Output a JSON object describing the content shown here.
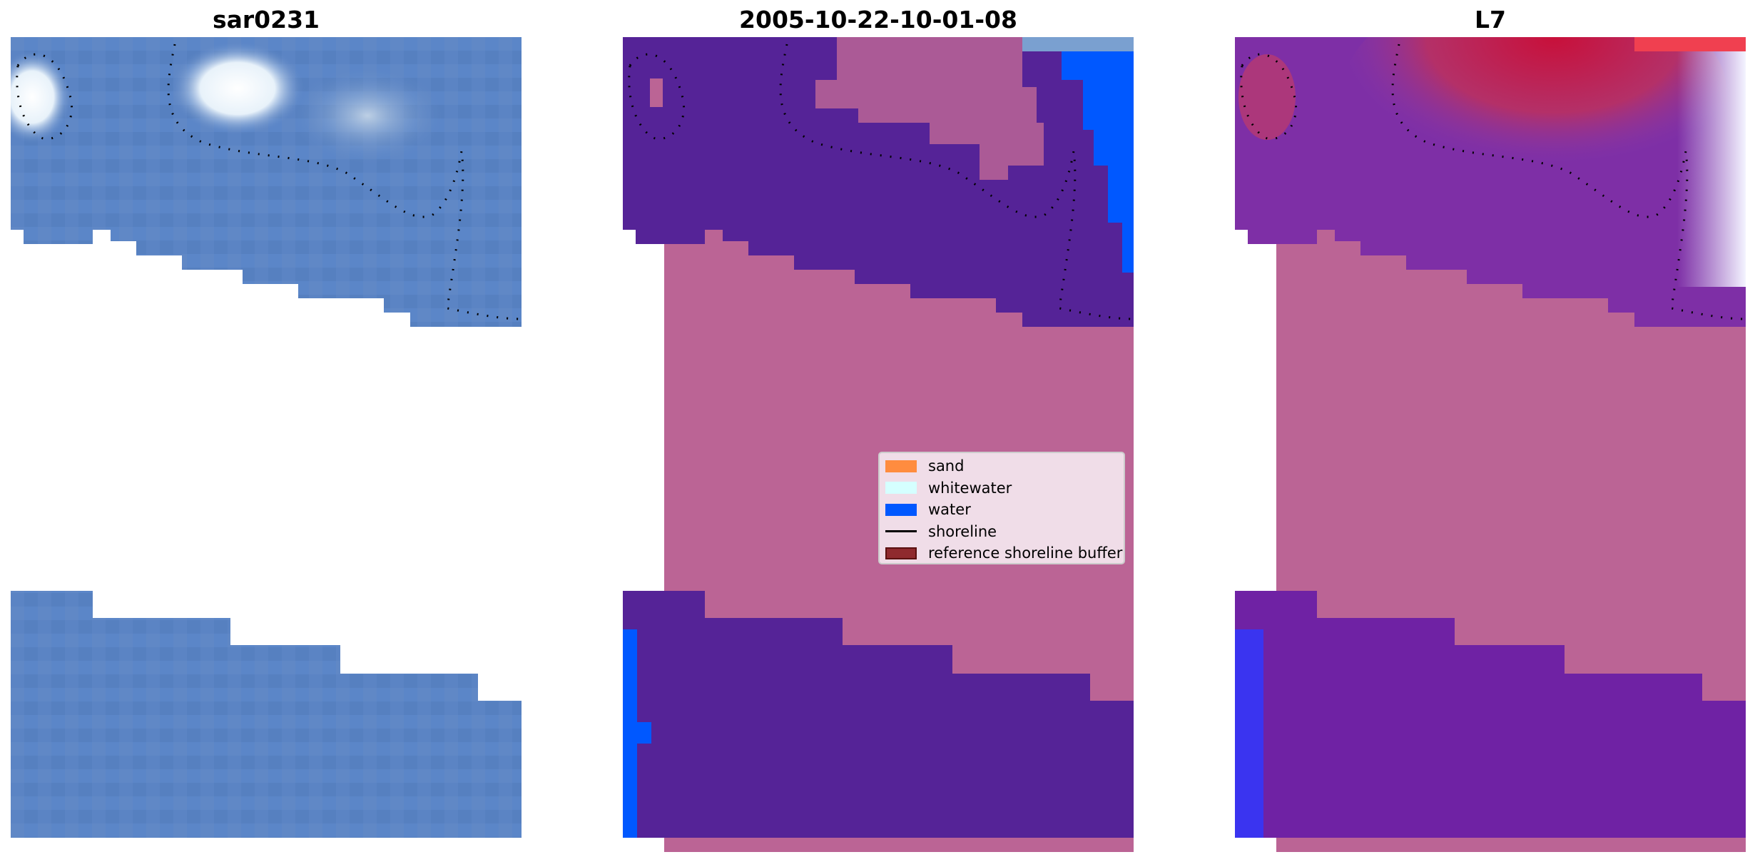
{
  "panels": [
    {
      "title": "sar0231",
      "kind": "rgb-image"
    },
    {
      "title": "2005-10-22-10-01-08",
      "kind": "classified-image"
    },
    {
      "title": "L7",
      "kind": "index-image"
    }
  ],
  "legend": {
    "items": [
      {
        "label": "sand",
        "color": "#ff8c3f",
        "type": "patch"
      },
      {
        "label": "whitewater",
        "color": "#d5ffff",
        "type": "patch"
      },
      {
        "label": "water",
        "color": "#0058ff",
        "type": "patch"
      },
      {
        "label": "shoreline",
        "color": "#000000",
        "type": "line"
      },
      {
        "label": "reference shoreline buffer",
        "color": "#8f2a2e",
        "type": "patch"
      }
    ]
  },
  "colors": {
    "rgb_water": "#5b84c4",
    "rgb_foam": "#eef5fb",
    "class_water_dark": "#552397",
    "class_buffer": "#bb6495",
    "class_water": "#0058ff",
    "index_purple": "#7e2fa6",
    "index_red": "#c61b45",
    "index_pink": "#bb6495"
  }
}
